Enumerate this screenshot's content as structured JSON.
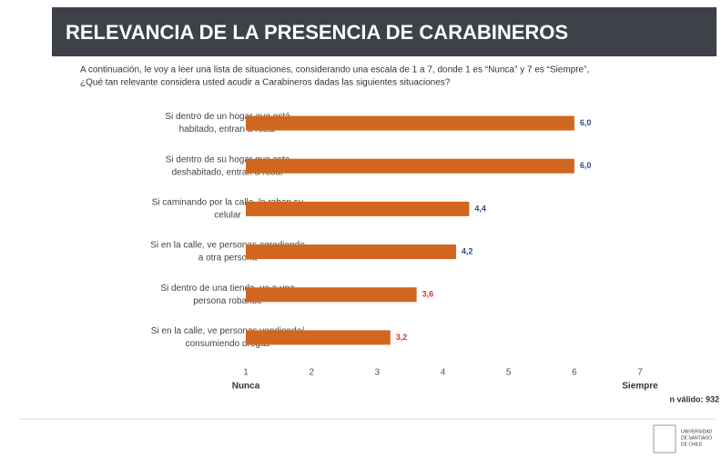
{
  "chart_data": {
    "type": "bar",
    "orientation": "horizontal",
    "title": "RELEVANCIA DE LA PRESENCIA DE CARABINEROS",
    "subtitle": [
      "A continuación, le voy a leer una lista de situaciones, considerando una escala de 1 a 7, donde 1 es “Nunca” y 7 es “Siempre”,",
      "¿Qué tan relevante considera usted acudir a Carabineros dadas las siguientes situaciones?"
    ],
    "categories": [
      [
        "Si dentro de un hogar que está",
        "habitado, entran a robar"
      ],
      [
        "Si dentro de su hogar que esta",
        "deshabitado, entran a robar"
      ],
      [
        "Si caminando por la calle, le roban su",
        "celular"
      ],
      [
        "Si en la calle, ve personas agrediendo",
        "a otra persona"
      ],
      [
        "Si dentro de una tienda, ve a una",
        "persona robando"
      ],
      [
        "Si en la calle, ve personas vendiendo/",
        "consumiendo drogas"
      ]
    ],
    "values": [
      6.0,
      6.0,
      4.4,
      4.2,
      3.6,
      3.2
    ],
    "value_labels": [
      "6,0",
      "6,0",
      "4,4",
      "4,2",
      "3,6",
      "3,2"
    ],
    "value_label_colors": [
      "#2f4a8a",
      "#2f4a8a",
      "#2f4a8a",
      "#2f4a8a",
      "#d43a2a",
      "#d43a2a"
    ],
    "color": "#d0661f",
    "xlim": [
      1,
      7
    ],
    "xticks": [
      1,
      2,
      3,
      4,
      5,
      6,
      7
    ],
    "x_min_label": "Nunca",
    "x_max_label": "Siempre",
    "note": "n válido: 932",
    "logo_text": [
      "UNIVERSIDAD",
      "DE SANTIAGO",
      "DE CHILE"
    ]
  }
}
